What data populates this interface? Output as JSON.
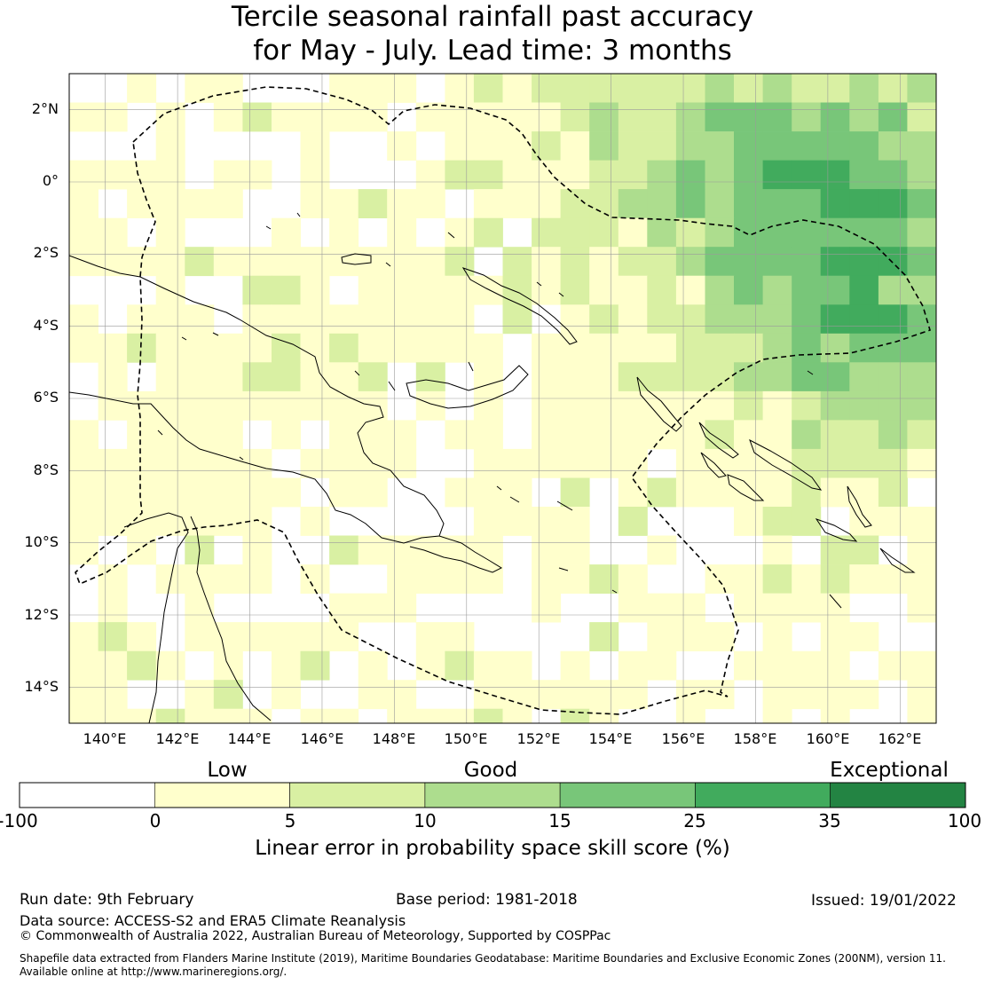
{
  "title": {
    "line1": "Tercile seasonal rainfall past accuracy",
    "line2": "for May - July. Lead time: 3 months"
  },
  "map": {
    "lon_labels": [
      "140°E",
      "142°E",
      "144°E",
      "146°E",
      "148°E",
      "150°E",
      "152°E",
      "154°E",
      "156°E",
      "158°E",
      "160°E",
      "162°E"
    ],
    "lat_labels": [
      "2°N",
      "0°",
      "2°S",
      "4°S",
      "6°S",
      "8°S",
      "10°S",
      "12°S",
      "14°S"
    ],
    "extent": {
      "lon_min": 139,
      "lon_max": 163,
      "lat_min": -15,
      "lat_max": 3
    },
    "grid_resolution_deg": 0.8
  },
  "legend": {
    "band_labels": [
      "Low",
      "Good",
      "Exceptional"
    ],
    "ticks": [
      "-100",
      "0",
      "5",
      "10",
      "15",
      "25",
      "35",
      "100"
    ],
    "colors": [
      "#ffffff",
      "#ffffcc",
      "#d9f0a3",
      "#addd8e",
      "#78c679",
      "#41ab5d",
      "#238443"
    ],
    "title": "Linear error in probability space skill score (%)"
  },
  "footer": {
    "run_date": "Run date: 9th February",
    "base_period": "Base period: 1981-2018",
    "issued": "Issued: 19/01/2022",
    "data_source": "Data source: ACCESS-S2 and ERA5 Climate Reanalysis",
    "copyright": "© Commonwealth of Australia 2022, Australian Bureau of Meteorology, Supported by COSPPac",
    "shapefile_line1": "Shapefile data extracted from Flanders Marine Institute (2019), Maritime Boundaries Geodatabase: Maritime Boundaries and Exclusive Economic Zones (200NM), version 11.",
    "shapefile_line2": "Available online at http://www.marineregions.org/."
  }
}
